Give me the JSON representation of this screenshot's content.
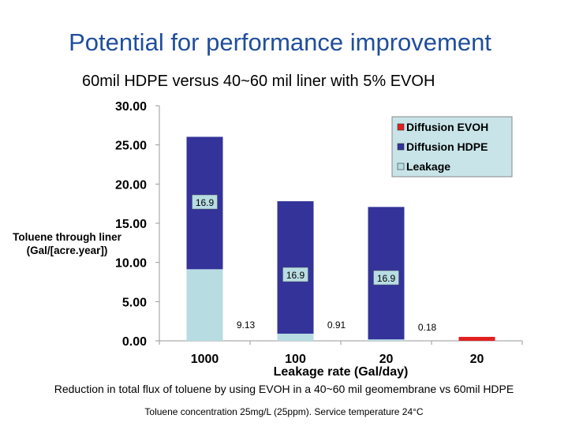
{
  "slide": {
    "title": "Potential for performance improvement",
    "subtitle": "60mil HDPE versus 40~60 mil liner with 5% EVOH",
    "caption": "Reduction in total flux of toluene by using EVOH in a 40~60 mil geomembrane vs 60mil HDPE",
    "note": "Toluene concentration 25mg/L (25ppm). Service temperature 24°C"
  },
  "chart_data": {
    "type": "bar",
    "stacked": true,
    "categories": [
      "1000",
      "100",
      "20",
      "20"
    ],
    "series": [
      {
        "name": "Leakage",
        "color": "#b7dde3",
        "values": [
          9.13,
          0.91,
          0.18,
          0
        ]
      },
      {
        "name": "Diffusion HDPE",
        "color": "#33339a",
        "values": [
          16.9,
          16.9,
          16.9,
          0
        ]
      },
      {
        "name": "Diffusion EVOH",
        "color": "#e0201f",
        "values": [
          0,
          0,
          0,
          0.5
        ]
      }
    ],
    "hdpe_labels": [
      "16.9",
      "16.9",
      "16.9"
    ],
    "leakage_labels": [
      "9.13",
      "0.91",
      "0.18"
    ],
    "ylabel": "Toluene through liner (Gal/[acre.year])",
    "xlabel": "Leakage rate (Gal/day)",
    "ylim": [
      0,
      30
    ],
    "yticks": [
      "0.00",
      "5.00",
      "10.00",
      "15.00",
      "20.00",
      "25.00",
      "30.00"
    ],
    "legend_position": "top-right",
    "plot_background": "#ffffff",
    "grid": false
  }
}
